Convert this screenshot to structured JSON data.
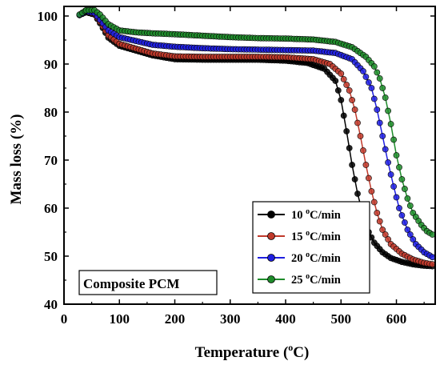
{
  "chart_data": {
    "type": "line",
    "xlabel": "Temperature (",
    "xlabel_sup": "o",
    "xlabel_suffix": "C)",
    "ylabel": "Mass loss (%)",
    "xlim": [
      0,
      670
    ],
    "ylim": [
      40,
      102
    ],
    "xticks": [
      "0",
      "100",
      "200",
      "300",
      "400",
      "500",
      "600"
    ],
    "yticks": [
      "40",
      "50",
      "60",
      "70",
      "80",
      "90",
      "100"
    ],
    "annotation": "Composite PCM",
    "legend_position": "bottom-right",
    "series": [
      {
        "name": "10 oC/min",
        "color": "#000000",
        "points": [
          [
            28,
            100.2
          ],
          [
            40,
            100.8
          ],
          [
            55,
            100.3
          ],
          [
            65,
            98.5
          ],
          [
            80,
            95.5
          ],
          [
            100,
            93.8
          ],
          [
            130,
            92.8
          ],
          [
            160,
            91.8
          ],
          [
            200,
            91.0
          ],
          [
            250,
            90.9
          ],
          [
            300,
            90.9
          ],
          [
            350,
            90.9
          ],
          [
            400,
            90.7
          ],
          [
            440,
            90.2
          ],
          [
            470,
            89.0
          ],
          [
            490,
            86.5
          ],
          [
            500,
            82.5
          ],
          [
            510,
            76.0
          ],
          [
            520,
            69.0
          ],
          [
            530,
            63.0
          ],
          [
            540,
            58.5
          ],
          [
            550,
            55.0
          ],
          [
            560,
            52.8
          ],
          [
            575,
            50.8
          ],
          [
            590,
            49.6
          ],
          [
            610,
            48.8
          ],
          [
            630,
            48.3
          ],
          [
            650,
            48.0
          ],
          [
            665,
            47.9
          ]
        ]
      },
      {
        "name": "15 oC/min",
        "color": "#c0392b",
        "points": [
          [
            28,
            100.2
          ],
          [
            40,
            100.9
          ],
          [
            55,
            100.4
          ],
          [
            65,
            98.8
          ],
          [
            80,
            96.0
          ],
          [
            100,
            94.2
          ],
          [
            130,
            93.2
          ],
          [
            160,
            92.2
          ],
          [
            200,
            91.6
          ],
          [
            250,
            91.5
          ],
          [
            300,
            91.5
          ],
          [
            350,
            91.5
          ],
          [
            400,
            91.4
          ],
          [
            450,
            91.0
          ],
          [
            480,
            90.0
          ],
          [
            500,
            88.0
          ],
          [
            515,
            84.5
          ],
          [
            525,
            80.5
          ],
          [
            535,
            75.0
          ],
          [
            545,
            69.0
          ],
          [
            555,
            63.5
          ],
          [
            565,
            59.0
          ],
          [
            575,
            55.5
          ],
          [
            590,
            52.5
          ],
          [
            610,
            50.5
          ],
          [
            630,
            49.3
          ],
          [
            650,
            48.6
          ],
          [
            665,
            48.3
          ]
        ]
      },
      {
        "name": "20 oC/min",
        "color": "#1f1fe0",
        "points": [
          [
            28,
            100.2
          ],
          [
            40,
            101.0
          ],
          [
            55,
            100.6
          ],
          [
            65,
            99.2
          ],
          [
            80,
            97.0
          ],
          [
            100,
            95.6
          ],
          [
            130,
            94.8
          ],
          [
            160,
            94.0
          ],
          [
            200,
            93.6
          ],
          [
            250,
            93.3
          ],
          [
            300,
            93.1
          ],
          [
            350,
            93.0
          ],
          [
            400,
            92.9
          ],
          [
            450,
            92.8
          ],
          [
            490,
            92.3
          ],
          [
            520,
            91.0
          ],
          [
            540,
            88.5
          ],
          [
            555,
            85.0
          ],
          [
            565,
            80.5
          ],
          [
            575,
            75.0
          ],
          [
            585,
            69.5
          ],
          [
            595,
            64.5
          ],
          [
            605,
            60.0
          ],
          [
            620,
            55.5
          ],
          [
            635,
            52.5
          ],
          [
            650,
            50.8
          ],
          [
            665,
            49.8
          ]
        ]
      },
      {
        "name": "25 oC/min",
        "color": "#1e8c2a",
        "points": [
          [
            28,
            100.3
          ],
          [
            40,
            101.2
          ],
          [
            55,
            101.2
          ],
          [
            65,
            100.3
          ],
          [
            80,
            98.3
          ],
          [
            100,
            97.0
          ],
          [
            130,
            96.6
          ],
          [
            160,
            96.4
          ],
          [
            200,
            96.2
          ],
          [
            250,
            95.9
          ],
          [
            300,
            95.6
          ],
          [
            350,
            95.4
          ],
          [
            400,
            95.3
          ],
          [
            450,
            95.1
          ],
          [
            490,
            94.6
          ],
          [
            520,
            93.5
          ],
          [
            545,
            91.5
          ],
          [
            560,
            89.5
          ],
          [
            570,
            87.0
          ],
          [
            580,
            83.0
          ],
          [
            590,
            77.5
          ],
          [
            600,
            71.0
          ],
          [
            610,
            66.0
          ],
          [
            620,
            62.0
          ],
          [
            630,
            59.0
          ],
          [
            645,
            56.5
          ],
          [
            655,
            55.2
          ],
          [
            665,
            54.5
          ]
        ]
      }
    ]
  }
}
